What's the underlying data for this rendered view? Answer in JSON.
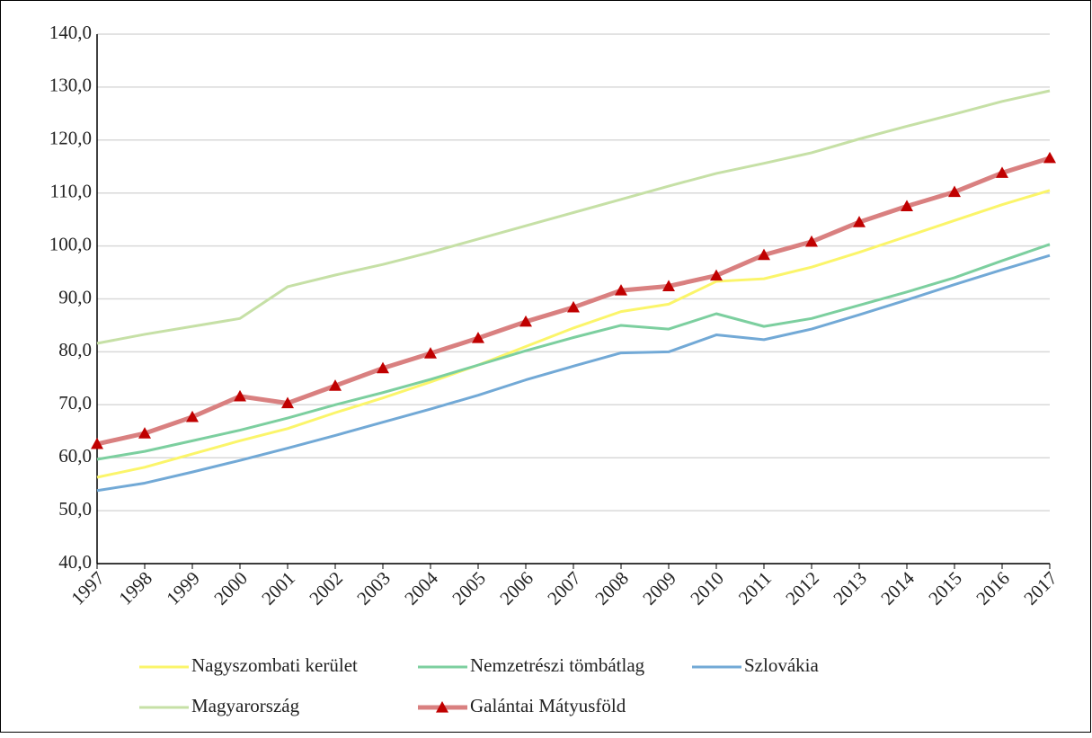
{
  "chart_data": {
    "type": "line",
    "categories": [
      "1997",
      "1998",
      "1999",
      "2000",
      "2001",
      "2002",
      "2003",
      "2004",
      "2005",
      "2006",
      "2007",
      "2008",
      "2009",
      "2010",
      "2011",
      "2012",
      "2013",
      "2014",
      "2015",
      "2016",
      "2017"
    ],
    "series": [
      {
        "name": "Nagyszombati kerület",
        "color": "#fbf56a",
        "values": [
          56.3,
          58.2,
          60.7,
          63.2,
          65.5,
          68.5,
          71.3,
          74.3,
          77.5,
          81.0,
          84.5,
          87.6,
          89.0,
          93.3,
          93.8,
          96.0,
          98.8,
          101.8,
          104.8,
          107.8,
          110.5
        ]
      },
      {
        "name": "Nemzetrészi tömbátlag",
        "color": "#7ccf9f",
        "values": [
          59.7,
          61.2,
          63.2,
          65.2,
          67.5,
          70.0,
          72.3,
          74.8,
          77.5,
          80.2,
          82.7,
          85.0,
          84.3,
          87.2,
          84.8,
          86.3,
          88.8,
          91.3,
          94.0,
          97.2,
          100.3
        ]
      },
      {
        "name": "Szlovákia",
        "color": "#72a9d6",
        "values": [
          53.8,
          55.2,
          57.3,
          59.5,
          61.8,
          64.2,
          66.7,
          69.2,
          71.8,
          74.7,
          77.3,
          79.8,
          80.0,
          83.2,
          82.3,
          84.3,
          87.0,
          89.8,
          92.7,
          95.5,
          98.2
        ]
      },
      {
        "name": "Magyarország",
        "color": "#c6e0a6",
        "values": [
          81.6,
          83.3,
          84.8,
          86.3,
          92.3,
          94.5,
          96.5,
          98.8,
          101.3,
          103.8,
          106.3,
          108.8,
          111.3,
          113.7,
          115.6,
          117.6,
          120.2,
          122.6,
          124.9,
          127.3,
          129.3
        ]
      },
      {
        "name": "Galántai Mátyusföld",
        "color": "#d98080",
        "marker": "triangle",
        "marker_color": "#c00000",
        "values": [
          62.6,
          64.6,
          67.7,
          71.6,
          70.3,
          73.6,
          76.9,
          79.7,
          82.6,
          85.7,
          88.4,
          91.6,
          92.4,
          94.4,
          98.3,
          100.8,
          104.5,
          107.5,
          110.2,
          113.8,
          116.6
        ]
      }
    ],
    "ylim": [
      40,
      140
    ],
    "yticks": [
      {
        "value": 40,
        "label": "40,0"
      },
      {
        "value": 50,
        "label": "50,0"
      },
      {
        "value": 60,
        "label": "60,0"
      },
      {
        "value": 70,
        "label": "70,0"
      },
      {
        "value": 80,
        "label": "80,0"
      },
      {
        "value": 90,
        "label": "90,0"
      },
      {
        "value": 100,
        "label": "100,0"
      },
      {
        "value": 110,
        "label": "110,0"
      },
      {
        "value": 120,
        "label": "120,0"
      },
      {
        "value": 130,
        "label": "130,0"
      },
      {
        "value": 140,
        "label": "140,0"
      }
    ],
    "grid": true,
    "legend": "bottom"
  }
}
